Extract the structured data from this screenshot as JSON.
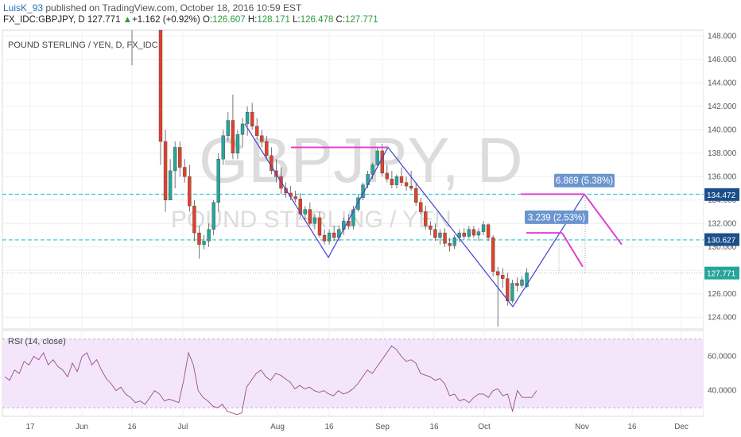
{
  "header": {
    "user": "LuisK_93",
    "published": " published on TradingView.com, October 18, 2016 10:59 EST",
    "symbol": "FX_IDC:GBPJPY, D ",
    "price": "127.771",
    "arrow": "▲",
    "change": "+1.162 (+0.92%)",
    "o_label": "O:",
    "o_val": "126.607",
    "h_label": "H:",
    "h_val": "128.171",
    "l_label": "L:",
    "l_val": "126.478",
    "c_label": "C:",
    "c_val": "127.771"
  },
  "chart_label": "POUND STERLING / YEN, D, FX_IDC",
  "watermark": {
    "symbol": "GBPJPY, D",
    "name": "POUND STERLING / YEN"
  },
  "rsi_label": "RSI (14, close)",
  "colors": {
    "up": "#26a69a",
    "down": "#e0412b",
    "rsi_band": "#f3e6fb",
    "rsi_line": "#9b4a8a",
    "pattern": "#4444cc",
    "magenta": "#e040d0",
    "level": "#28c8d8"
  },
  "chart_data": [
    {
      "type": "candlestick",
      "x_tick_labels": [
        "17",
        "Jun",
        "16",
        "Jul",
        "Aug",
        "16",
        "Sep",
        "16",
        "Oct",
        "Nov",
        "16",
        "Dec"
      ],
      "y_tick_labels": [
        "148.000",
        "146.000",
        "144.000",
        "142.000",
        "140.000",
        "138.000",
        "136.000",
        "134.000",
        "132.000",
        "130.000",
        "128.000",
        "126.000",
        "124.000"
      ],
      "y_range": [
        123,
        148.5
      ],
      "price_labels": [
        "134.472",
        "130.627",
        "127.771"
      ],
      "horizontal_levels": [
        134.5,
        130.6
      ],
      "measure_labels": [
        "6.869 (5.38%)",
        "3.239 (2.53%)"
      ],
      "candles": [
        {
          "o": 150,
          "h": 151,
          "l": 137,
          "c": 139
        },
        {
          "o": 139,
          "h": 140,
          "l": 133,
          "c": 134
        },
        {
          "o": 134,
          "h": 137.5,
          "l": 134,
          "c": 136.5
        },
        {
          "o": 136.5,
          "h": 139,
          "l": 135,
          "c": 138.5
        },
        {
          "o": 138.5,
          "h": 139,
          "l": 136,
          "c": 136.8
        },
        {
          "o": 136.8,
          "h": 137.5,
          "l": 135.5,
          "c": 136
        },
        {
          "o": 136,
          "h": 137,
          "l": 133,
          "c": 133.5
        },
        {
          "o": 133.5,
          "h": 134,
          "l": 130.5,
          "c": 131.2
        },
        {
          "o": 131.2,
          "h": 131.8,
          "l": 129,
          "c": 130.2
        },
        {
          "o": 130.2,
          "h": 131,
          "l": 129.8,
          "c": 130.5
        },
        {
          "o": 130.5,
          "h": 132,
          "l": 130,
          "c": 131.5
        },
        {
          "o": 131.5,
          "h": 134,
          "l": 131,
          "c": 133.8
        },
        {
          "o": 133.8,
          "h": 138,
          "l": 133,
          "c": 137.5
        },
        {
          "o": 137.5,
          "h": 140,
          "l": 137,
          "c": 139.5
        },
        {
          "o": 139.5,
          "h": 141.5,
          "l": 139,
          "c": 140.8
        },
        {
          "o": 140.8,
          "h": 143,
          "l": 137.5,
          "c": 138
        },
        {
          "o": 138,
          "h": 140,
          "l": 137.5,
          "c": 139.6
        },
        {
          "o": 139.6,
          "h": 141,
          "l": 138.5,
          "c": 140.5
        },
        {
          "o": 140.5,
          "h": 142,
          "l": 139.5,
          "c": 141.5
        },
        {
          "o": 141.5,
          "h": 142.3,
          "l": 140,
          "c": 140.3
        },
        {
          "o": 140.3,
          "h": 141,
          "l": 139.2,
          "c": 139.5
        },
        {
          "o": 139.5,
          "h": 140,
          "l": 138.5,
          "c": 139
        },
        {
          "o": 139,
          "h": 139.5,
          "l": 137.5,
          "c": 137.8
        },
        {
          "o": 137.8,
          "h": 138.5,
          "l": 136.2,
          "c": 136.5
        },
        {
          "o": 136.5,
          "h": 137.5,
          "l": 135.5,
          "c": 136
        },
        {
          "o": 136,
          "h": 136.8,
          "l": 134.5,
          "c": 135
        },
        {
          "o": 135,
          "h": 135.5,
          "l": 134.2,
          "c": 134.6
        },
        {
          "o": 134.6,
          "h": 135.2,
          "l": 134,
          "c": 134.3
        },
        {
          "o": 134.3,
          "h": 134.8,
          "l": 133.8,
          "c": 134.1
        },
        {
          "o": 134.1,
          "h": 134.6,
          "l": 132.5,
          "c": 132.8
        },
        {
          "o": 132.8,
          "h": 133.5,
          "l": 132.2,
          "c": 133.2
        },
        {
          "o": 133.2,
          "h": 133.8,
          "l": 131.8,
          "c": 132
        },
        {
          "o": 132,
          "h": 132.8,
          "l": 131.5,
          "c": 132.5
        },
        {
          "o": 132.5,
          "h": 133,
          "l": 130.8,
          "c": 131
        },
        {
          "o": 131,
          "h": 131.5,
          "l": 130.2,
          "c": 130.5
        },
        {
          "o": 130.5,
          "h": 131.5,
          "l": 130.2,
          "c": 131.2
        },
        {
          "o": 131.2,
          "h": 131.8,
          "l": 130.5,
          "c": 130.8
        },
        {
          "o": 130.8,
          "h": 131.8,
          "l": 130.5,
          "c": 131.5
        },
        {
          "o": 131.5,
          "h": 132.5,
          "l": 131,
          "c": 132.2
        },
        {
          "o": 132.2,
          "h": 132.8,
          "l": 131.5,
          "c": 131.8
        },
        {
          "o": 131.8,
          "h": 133.5,
          "l": 131.5,
          "c": 133.2
        },
        {
          "o": 133.2,
          "h": 134.5,
          "l": 133,
          "c": 134.2
        },
        {
          "o": 134.2,
          "h": 135.5,
          "l": 134,
          "c": 135.3
        },
        {
          "o": 135.3,
          "h": 136.5,
          "l": 135,
          "c": 136.2
        },
        {
          "o": 136.2,
          "h": 137.2,
          "l": 135.8,
          "c": 137
        },
        {
          "o": 137,
          "h": 138.5,
          "l": 136.8,
          "c": 138.2
        },
        {
          "o": 138.2,
          "h": 138.8,
          "l": 136,
          "c": 136.3
        },
        {
          "o": 136.3,
          "h": 137,
          "l": 135.5,
          "c": 135.8
        },
        {
          "o": 135.8,
          "h": 136.5,
          "l": 135,
          "c": 135.3
        },
        {
          "o": 135.3,
          "h": 136.2,
          "l": 135,
          "c": 136
        },
        {
          "o": 136,
          "h": 136.8,
          "l": 135.2,
          "c": 135.5
        },
        {
          "o": 135.5,
          "h": 136,
          "l": 134.8,
          "c": 135.2
        },
        {
          "o": 135.2,
          "h": 136.5,
          "l": 134.8,
          "c": 135
        },
        {
          "o": 135,
          "h": 135.5,
          "l": 133.5,
          "c": 133.8
        },
        {
          "o": 133.8,
          "h": 134.2,
          "l": 132.8,
          "c": 133
        },
        {
          "o": 133,
          "h": 133.5,
          "l": 131.5,
          "c": 131.8
        },
        {
          "o": 131.8,
          "h": 132.2,
          "l": 131,
          "c": 131.5
        },
        {
          "o": 131.5,
          "h": 132,
          "l": 130.5,
          "c": 130.8
        },
        {
          "o": 130.8,
          "h": 131.5,
          "l": 130.2,
          "c": 131.2
        },
        {
          "o": 131.2,
          "h": 131.6,
          "l": 130,
          "c": 130.3
        },
        {
          "o": 130.3,
          "h": 130.8,
          "l": 129.6,
          "c": 130.1
        },
        {
          "o": 130.1,
          "h": 131,
          "l": 129.8,
          "c": 130.8
        },
        {
          "o": 130.8,
          "h": 131.5,
          "l": 130.4,
          "c": 131.2
        },
        {
          "o": 131.2,
          "h": 131.6,
          "l": 130.6,
          "c": 130.9
        },
        {
          "o": 130.9,
          "h": 131.8,
          "l": 130.7,
          "c": 131.5
        },
        {
          "o": 131.5,
          "h": 131.8,
          "l": 130.8,
          "c": 131
        },
        {
          "o": 131,
          "h": 131.6,
          "l": 130.5,
          "c": 131.3
        },
        {
          "o": 131.3,
          "h": 132.2,
          "l": 131,
          "c": 131.9
        },
        {
          "o": 131.9,
          "h": 132,
          "l": 130.5,
          "c": 130.8
        },
        {
          "o": 130.8,
          "h": 131,
          "l": 127.5,
          "c": 127.9
        },
        {
          "o": 127.9,
          "h": 128.3,
          "l": 123.2,
          "c": 127.6
        },
        {
          "o": 127.6,
          "h": 128.2,
          "l": 126.5,
          "c": 127.3
        },
        {
          "o": 127.3,
          "h": 127.8,
          "l": 125,
          "c": 125.4
        },
        {
          "o": 125.4,
          "h": 127.2,
          "l": 125.2,
          "c": 126.9
        },
        {
          "o": 126.9,
          "h": 127.4,
          "l": 126.2,
          "c": 126.7
        },
        {
          "o": 126.7,
          "h": 127.5,
          "l": 126.5,
          "c": 127.2
        },
        {
          "o": 126.6,
          "h": 128.2,
          "l": 126.5,
          "c": 127.8
        }
      ]
    },
    {
      "type": "line",
      "name": "RSI (14, close)",
      "y_tick_labels": [
        "60.0000",
        "40.0000"
      ],
      "y_range": [
        25,
        75
      ],
      "band": [
        30,
        70
      ],
      "values": [
        48,
        46,
        52,
        50,
        57,
        55,
        60,
        58,
        62,
        55,
        58,
        54,
        52,
        48,
        56,
        51,
        60,
        62,
        55,
        58,
        52,
        47,
        44,
        40,
        42,
        38,
        36,
        33,
        34,
        32,
        36,
        40,
        38,
        34,
        35,
        34,
        33,
        46,
        62,
        55,
        40,
        36,
        34,
        31,
        30,
        32,
        28,
        27,
        26,
        27,
        42,
        46,
        50,
        52,
        48,
        46,
        50,
        49,
        47,
        45,
        41,
        43,
        41,
        42,
        40,
        39,
        40,
        38,
        37,
        40,
        38,
        39,
        41,
        44,
        48,
        52,
        50,
        54,
        58,
        62,
        66,
        64,
        60,
        57,
        58,
        56,
        50,
        49,
        48,
        46,
        47,
        44,
        37,
        38,
        34,
        35,
        33,
        36,
        38,
        38,
        36,
        40,
        41,
        37,
        38,
        28,
        40,
        36,
        36,
        36,
        40
      ]
    }
  ]
}
